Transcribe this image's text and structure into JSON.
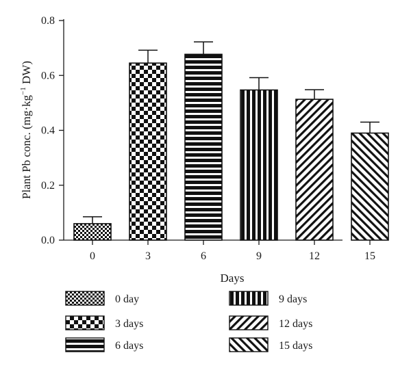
{
  "chart_data": {
    "type": "bar",
    "xlabel": "Days",
    "ylabel_prefix": "Plant Pb conc. (mg·kg",
    "ylabel_sup": "−1",
    "ylabel_suffix": " DW)",
    "ylim": [
      0,
      0.8
    ],
    "yticks": [
      "0.0",
      "0.2",
      "0.4",
      "0.6",
      "0.8"
    ],
    "categories": [
      "0",
      "3",
      "6",
      "9",
      "12",
      "15"
    ],
    "values": [
      0.06,
      0.645,
      0.677,
      0.547,
      0.513,
      0.39
    ],
    "errors": [
      0.025,
      0.047,
      0.045,
      0.045,
      0.035,
      0.04
    ],
    "legend": [
      "0 day",
      "3 days",
      "6 days",
      "9 days",
      "12 days",
      "15 days"
    ],
    "patterns": [
      "fine-checker",
      "checker",
      "horizontal-lines",
      "vertical-lines",
      "diagonal-lines",
      "diagonal-lines-reverse"
    ],
    "grid": false,
    "legend_position": "bottom"
  }
}
